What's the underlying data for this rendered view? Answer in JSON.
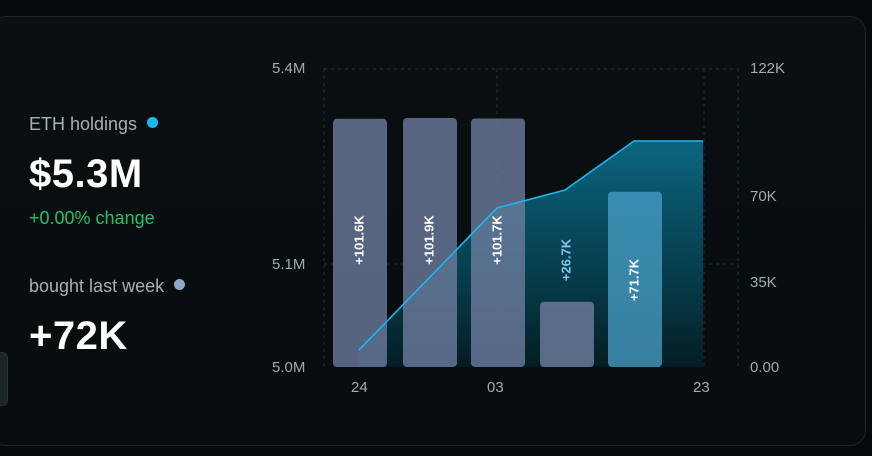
{
  "holdings": {
    "label": "ETH holdings",
    "dot_color": "#1ab8f0",
    "value": "$5.3M",
    "change": "+0.00% change"
  },
  "bought": {
    "label": "bought last week",
    "dot_color": "#8fa8c8",
    "value": "+72K"
  },
  "colors": {
    "bar": "#5a6a87",
    "bar_highlight": "#3d8fb7",
    "line": "#1ab8f0",
    "positive": "#1fc267"
  },
  "chart_data": {
    "type": "bar",
    "x_tick_labels": [
      "24",
      "03",
      "23"
    ],
    "y_left_ticks": [
      "5.4M",
      "5.1M",
      "5.0M"
    ],
    "y_right_ticks": [
      "122K",
      "70K",
      "35K",
      "0.00"
    ],
    "y_left_range": [
      5000000,
      5400000
    ],
    "y_right_range": [
      0,
      122000
    ],
    "series": [
      {
        "type": "bar",
        "axis": "right",
        "values": [
          101600,
          101900,
          101700,
          26700,
          71700
        ],
        "labels": [
          "+101.6K",
          "+101.9K",
          "+101.7K",
          "+26.7K",
          "+71.7K"
        ]
      },
      {
        "type": "area-line",
        "axis": "left",
        "values": [
          5020000,
          5107000,
          5207000,
          5232000,
          5300000,
          5300000
        ]
      }
    ],
    "grid": true
  }
}
